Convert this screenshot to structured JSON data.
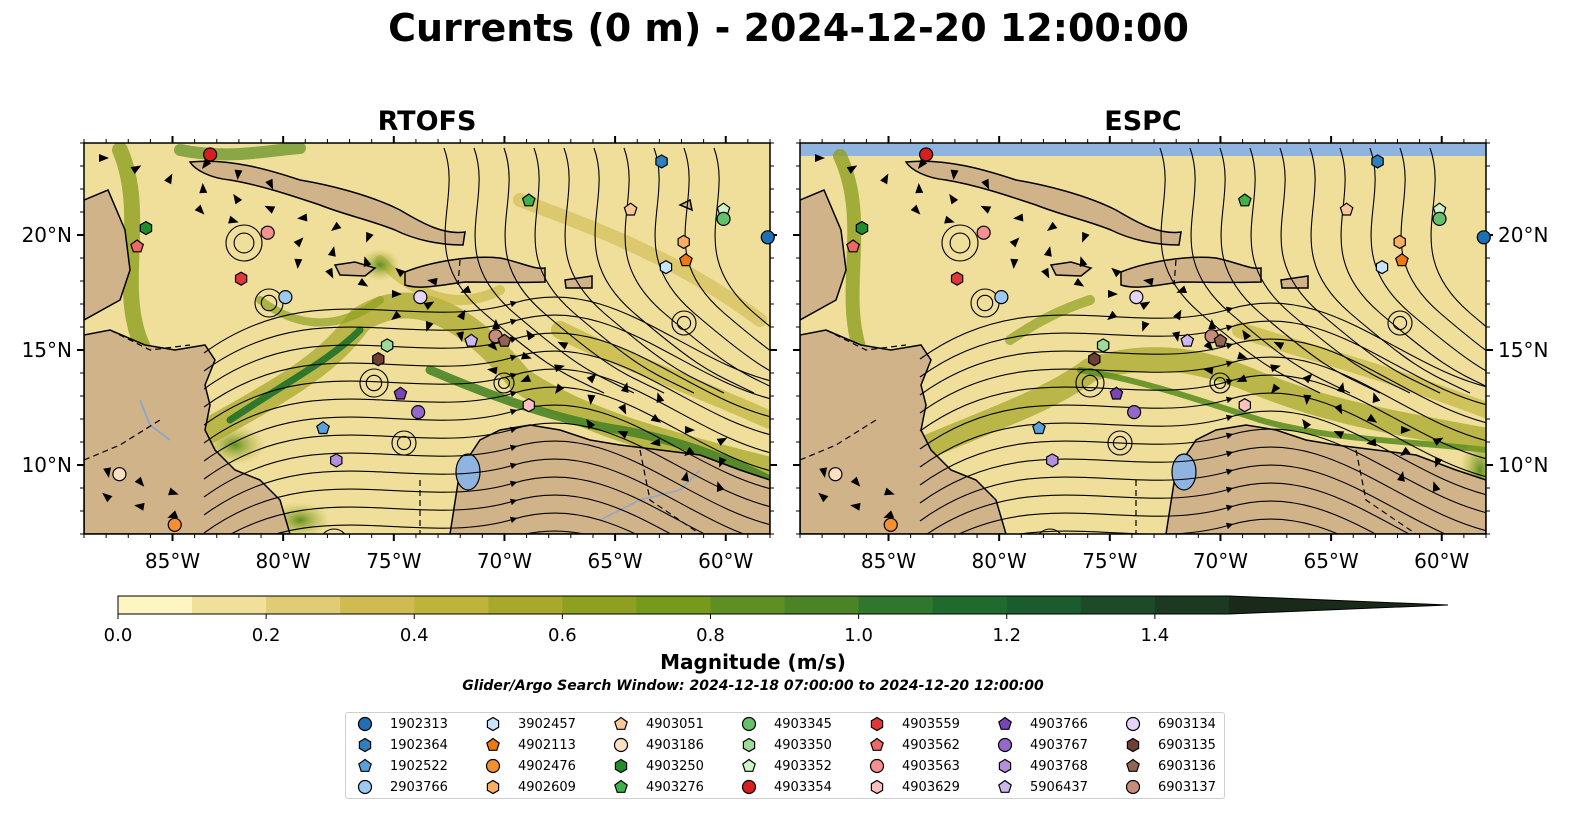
{
  "title": "Currents (0 m) - 2024-12-20 12:00:00",
  "panels": [
    {
      "title": "RTOFS"
    },
    {
      "title": "ESPC"
    }
  ],
  "axes": {
    "x_ticks": [
      "85°W",
      "80°W",
      "75°W",
      "70°W",
      "65°W",
      "60°W"
    ],
    "y_ticks": [
      "20°N",
      "15°N",
      "10°N"
    ],
    "lon_range": [
      -89,
      -58
    ],
    "lat_range": [
      7,
      24
    ]
  },
  "colorbar": {
    "label": "Magnitude (m/s)",
    "ticks": [
      "0.0",
      "0.2",
      "0.4",
      "0.6",
      "0.8",
      "1.0",
      "1.2",
      "1.4"
    ],
    "range": [
      0,
      1.6
    ],
    "colors": [
      "#fdf6c2",
      "#f0e09a",
      "#e0cc74",
      "#cfbb52",
      "#bfb43a",
      "#a8a82c",
      "#8fa020",
      "#759a1c",
      "#5f8f22",
      "#4a8426",
      "#2f772c",
      "#1f6b2e",
      "#1b5c2e",
      "#1d4a28",
      "#1c3a22",
      "#1a2a1a"
    ]
  },
  "search_window": "Glider/Argo Search Window: 2024-12-18 07:00:00 to 2024-12-20 12:00:00",
  "legend": [
    {
      "id": "1902313",
      "shape": "circle",
      "color": "#1f6fb4"
    },
    {
      "id": "1902364",
      "shape": "hexagon",
      "color": "#2c7fc0"
    },
    {
      "id": "1902522",
      "shape": "pentagon",
      "color": "#5aa0dc"
    },
    {
      "id": "2903766",
      "shape": "circle",
      "color": "#9ccaf0"
    },
    {
      "id": "3902457",
      "shape": "hexagon",
      "color": "#c6e4fa"
    },
    {
      "id": "4902113",
      "shape": "pentagon",
      "color": "#f07810"
    },
    {
      "id": "4902476",
      "shape": "circle",
      "color": "#f59030"
    },
    {
      "id": "4902609",
      "shape": "hexagon",
      "color": "#fbae60"
    },
    {
      "id": "4903051",
      "shape": "pentagon",
      "color": "#fcc898"
    },
    {
      "id": "4903186",
      "shape": "circle",
      "color": "#fde0c4"
    },
    {
      "id": "4903250",
      "shape": "hexagon",
      "color": "#208c2a"
    },
    {
      "id": "4903276",
      "shape": "pentagon",
      "color": "#40b048"
    },
    {
      "id": "4903345",
      "shape": "circle",
      "color": "#66c06a"
    },
    {
      "id": "4903350",
      "shape": "hexagon",
      "color": "#9cdc98"
    },
    {
      "id": "4903352",
      "shape": "pentagon",
      "color": "#ccf4c8"
    },
    {
      "id": "4903354",
      "shape": "circle",
      "color": "#d62020"
    },
    {
      "id": "4903559",
      "shape": "hexagon",
      "color": "#e03838"
    },
    {
      "id": "4903562",
      "shape": "pentagon",
      "color": "#ee6868"
    },
    {
      "id": "4903563",
      "shape": "circle",
      "color": "#f49090"
    },
    {
      "id": "4903629",
      "shape": "hexagon",
      "color": "#fbc0c0"
    },
    {
      "id": "4903766",
      "shape": "pentagon",
      "color": "#7a44b4"
    },
    {
      "id": "4903767",
      "shape": "circle",
      "color": "#9468c8"
    },
    {
      "id": "4903768",
      "shape": "hexagon",
      "color": "#b490dc"
    },
    {
      "id": "5906437",
      "shape": "pentagon",
      "color": "#ccb8ee"
    },
    {
      "id": "6903134",
      "shape": "circle",
      "color": "#e6d4f6"
    },
    {
      "id": "6903135",
      "shape": "hexagon",
      "color": "#6e4032"
    },
    {
      "id": "6903136",
      "shape": "pentagon",
      "color": "#946452"
    },
    {
      "id": "6903137",
      "shape": "circle",
      "color": "#c88c7a"
    }
  ],
  "rtofs_floats": [
    {
      "id": "4903354",
      "lon": -83.3,
      "lat": 23.5
    },
    {
      "id": "4903250",
      "lon": -86.2,
      "lat": 20.3
    },
    {
      "id": "4903562",
      "lon": -86.6,
      "lat": 19.5
    },
    {
      "id": "4903563",
      "lon": -80.7,
      "lat": 20.1
    },
    {
      "id": "4903559",
      "lon": -81.9,
      "lat": 18.1
    },
    {
      "id": "2903766",
      "lon": -79.9,
      "lat": 17.3
    },
    {
      "id": "6903134",
      "lon": -73.8,
      "lat": 17.3
    },
    {
      "id": "4903350",
      "lon": -75.3,
      "lat": 15.2
    },
    {
      "id": "6903135",
      "lon": -75.7,
      "lat": 14.6
    },
    {
      "id": "4903766",
      "lon": -74.7,
      "lat": 13.1
    },
    {
      "id": "4903767",
      "lon": -73.9,
      "lat": 12.3
    },
    {
      "id": "1902522",
      "lon": -78.2,
      "lat": 11.6
    },
    {
      "id": "4903768",
      "lon": -77.6,
      "lat": 10.2
    },
    {
      "id": "5906437",
      "lon": -71.5,
      "lat": 15.4
    },
    {
      "id": "6903137",
      "lon": -70.4,
      "lat": 15.6
    },
    {
      "id": "6903136",
      "lon": -70.0,
      "lat": 15.4
    },
    {
      "id": "4903629",
      "lon": -68.9,
      "lat": 12.6
    },
    {
      "id": "4903276",
      "lon": -68.9,
      "lat": 21.5
    },
    {
      "id": "1902364",
      "lon": -62.9,
      "lat": 23.2
    },
    {
      "id": "4903051",
      "lon": -64.3,
      "lat": 21.1
    },
    {
      "id": "4903352",
      "lon": -60.1,
      "lat": 21.1
    },
    {
      "id": "4903345",
      "lon": -60.1,
      "lat": 20.7
    },
    {
      "id": "4902609",
      "lon": -61.9,
      "lat": 19.7
    },
    {
      "id": "4902113",
      "lon": -61.8,
      "lat": 18.9
    },
    {
      "id": "3902457",
      "lon": -62.7,
      "lat": 18.6
    },
    {
      "id": "1902313",
      "lon": -58.1,
      "lat": 19.9
    },
    {
      "id": "4903186",
      "lon": -87.4,
      "lat": 9.6
    },
    {
      "id": "4902476",
      "lon": -84.9,
      "lat": 7.4
    }
  ],
  "espc_floats": [
    {
      "id": "4903354",
      "lon": -83.3,
      "lat": 23.5
    },
    {
      "id": "4903250",
      "lon": -86.2,
      "lat": 20.3
    },
    {
      "id": "4903562",
      "lon": -86.6,
      "lat": 19.5
    },
    {
      "id": "4903563",
      "lon": -80.7,
      "lat": 20.1
    },
    {
      "id": "4903559",
      "lon": -81.9,
      "lat": 18.1
    },
    {
      "id": "2903766",
      "lon": -79.9,
      "lat": 17.3
    },
    {
      "id": "6903134",
      "lon": -73.8,
      "lat": 17.3
    },
    {
      "id": "4903350",
      "lon": -75.3,
      "lat": 15.2
    },
    {
      "id": "6903135",
      "lon": -75.7,
      "lat": 14.6
    },
    {
      "id": "4903766",
      "lon": -74.7,
      "lat": 13.1
    },
    {
      "id": "4903767",
      "lon": -73.9,
      "lat": 12.3
    },
    {
      "id": "1902522",
      "lon": -78.2,
      "lat": 11.6
    },
    {
      "id": "4903768",
      "lon": -77.6,
      "lat": 10.2
    },
    {
      "id": "5906437",
      "lon": -71.5,
      "lat": 15.4
    },
    {
      "id": "6903137",
      "lon": -70.4,
      "lat": 15.6
    },
    {
      "id": "6903136",
      "lon": -70.0,
      "lat": 15.4
    },
    {
      "id": "4903629",
      "lon": -68.9,
      "lat": 12.6
    },
    {
      "id": "4903276",
      "lon": -68.9,
      "lat": 21.5
    },
    {
      "id": "1902364",
      "lon": -62.9,
      "lat": 23.2
    },
    {
      "id": "4903051",
      "lon": -64.3,
      "lat": 21.1
    },
    {
      "id": "4903352",
      "lon": -60.1,
      "lat": 21.1
    },
    {
      "id": "4903345",
      "lon": -60.1,
      "lat": 20.7
    },
    {
      "id": "4902609",
      "lon": -61.9,
      "lat": 19.7
    },
    {
      "id": "4902113",
      "lon": -61.8,
      "lat": 18.9
    },
    {
      "id": "3902457",
      "lon": -62.7,
      "lat": 18.6
    },
    {
      "id": "1902313",
      "lon": -58.1,
      "lat": 19.9
    },
    {
      "id": "4903186",
      "lon": -87.4,
      "lat": 9.6
    },
    {
      "id": "4902476",
      "lon": -84.9,
      "lat": 7.4
    }
  ]
}
